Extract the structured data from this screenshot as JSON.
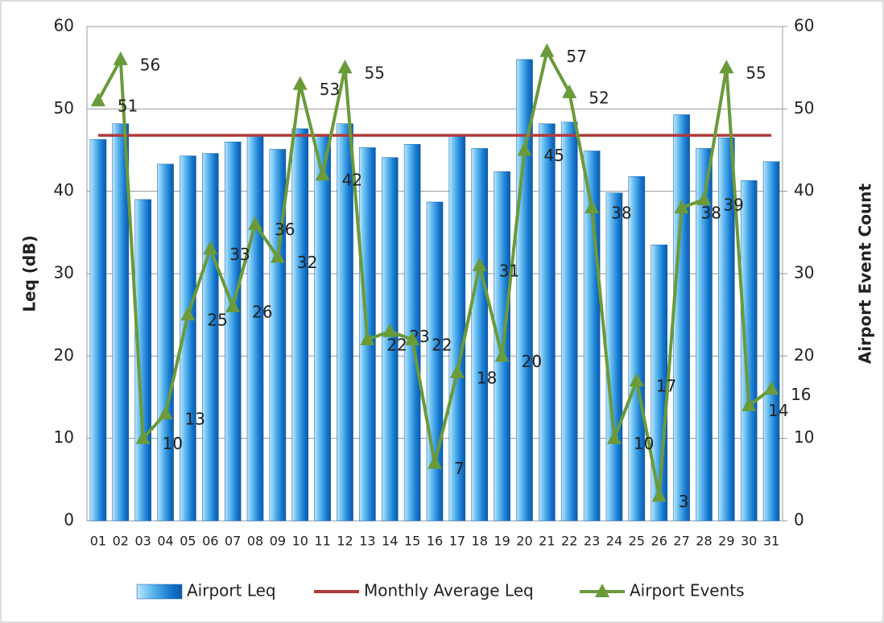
{
  "chart_data": {
    "type": "combo",
    "categories": [
      "01",
      "02",
      "03",
      "04",
      "05",
      "06",
      "07",
      "08",
      "09",
      "10",
      "11",
      "12",
      "13",
      "14",
      "15",
      "16",
      "17",
      "18",
      "19",
      "20",
      "21",
      "22",
      "23",
      "24",
      "25",
      "26",
      "27",
      "28",
      "29",
      "30",
      "31"
    ],
    "ylabel": "Leq (dB)",
    "y2label": "Airport Event Count",
    "ylim": [
      0,
      60
    ],
    "yticks": [
      0,
      10,
      20,
      30,
      40,
      50,
      60
    ],
    "y2lim": [
      0,
      60
    ],
    "y2ticks": [
      0,
      10,
      20,
      30,
      40,
      50,
      60
    ],
    "grid": true,
    "legend": "bottom",
    "series": [
      {
        "name": "Airport Leq",
        "type": "bar",
        "color": "#1e88d8",
        "axis": "y",
        "values": [
          46.3,
          48.2,
          39,
          43.3,
          44.3,
          44.6,
          46,
          46.7,
          45.1,
          47.6,
          46.9,
          48.2,
          45.3,
          44.1,
          45.7,
          38.7,
          46.8,
          45.2,
          42.4,
          56,
          48.2,
          48.4,
          44.9,
          39.8,
          41.8,
          33.5,
          49.3,
          45.2,
          46.5,
          41.3,
          43.6
        ]
      },
      {
        "name": "Monthly Average Leq",
        "type": "line",
        "color": "#b03a3a",
        "axis": "y",
        "values": [
          46.8,
          46.8,
          46.8,
          46.8,
          46.8,
          46.8,
          46.8,
          46.8,
          46.8,
          46.8,
          46.8,
          46.8,
          46.8,
          46.8,
          46.8,
          46.8,
          46.8,
          46.8,
          46.8,
          46.8,
          46.8,
          46.8,
          46.8,
          46.8,
          46.8,
          46.8,
          46.8,
          46.8,
          46.8,
          46.8,
          46.8
        ]
      },
      {
        "name": "Airport Events",
        "type": "line",
        "color": "#6a9a3a",
        "axis": "y2",
        "marker": "triangle",
        "data_labels": true,
        "values": [
          51,
          56,
          10,
          13,
          25,
          33,
          26,
          36,
          32,
          53,
          42,
          55,
          22,
          23,
          22,
          7,
          18,
          31,
          20,
          45,
          57,
          52,
          38,
          10,
          17,
          3,
          38,
          39,
          55,
          14,
          16
        ]
      }
    ]
  }
}
